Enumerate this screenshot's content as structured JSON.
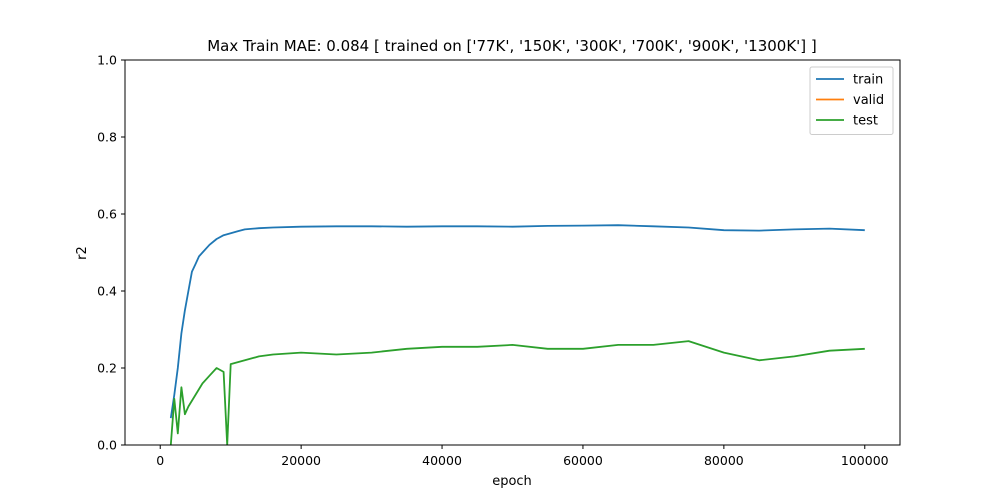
{
  "chart_data": {
    "type": "line",
    "title": "Max Train MAE: 0.084 [ trained on ['77K', '150K', '300K', '700K', '900K', '1300K'] ]",
    "xlabel": "epoch",
    "ylabel": "r2",
    "xlim": [
      -5000,
      105000
    ],
    "ylim": [
      0.0,
      1.0
    ],
    "xticks": [
      0,
      20000,
      40000,
      60000,
      80000,
      100000
    ],
    "yticks": [
      0.0,
      0.2,
      0.4,
      0.6,
      0.8,
      1.0
    ],
    "xtick_labels": [
      "0",
      "20000",
      "40000",
      "60000",
      "80000",
      "100000"
    ],
    "ytick_labels": [
      "0.0",
      "0.2",
      "0.4",
      "0.6",
      "0.8",
      "1.0"
    ],
    "legend_position": "top-right",
    "series": [
      {
        "name": "train",
        "color": "#1f77b4",
        "x": [
          1500,
          2000,
          2500,
          3000,
          3500,
          4000,
          4500,
          5000,
          5500,
          6000,
          7000,
          8000,
          9000,
          10000,
          11000,
          12000,
          14000,
          16000,
          20000,
          25000,
          30000,
          35000,
          40000,
          45000,
          50000,
          55000,
          60000,
          65000,
          70000,
          75000,
          80000,
          85000,
          90000,
          95000,
          100000
        ],
        "y": [
          0.07,
          0.13,
          0.2,
          0.29,
          0.35,
          0.4,
          0.45,
          0.47,
          0.49,
          0.5,
          0.52,
          0.535,
          0.545,
          0.55,
          0.555,
          0.56,
          0.563,
          0.565,
          0.567,
          0.568,
          0.568,
          0.567,
          0.568,
          0.568,
          0.567,
          0.569,
          0.57,
          0.571,
          0.568,
          0.565,
          0.558,
          0.557,
          0.56,
          0.562,
          0.558
        ]
      },
      {
        "name": "valid",
        "color": "#ff7f0e",
        "x": [],
        "y": []
      },
      {
        "name": "test",
        "color": "#2ca02c",
        "x": [
          1500,
          2000,
          2500,
          3000,
          3500,
          4000,
          5000,
          6000,
          7000,
          8000,
          9000,
          9500,
          10000,
          12000,
          14000,
          16000,
          20000,
          25000,
          30000,
          35000,
          40000,
          45000,
          50000,
          55000,
          60000,
          65000,
          70000,
          75000,
          80000,
          85000,
          90000,
          95000,
          100000
        ],
        "y": [
          0.0,
          0.12,
          0.03,
          0.15,
          0.08,
          0.1,
          0.13,
          0.16,
          0.18,
          0.2,
          0.19,
          0.0,
          0.21,
          0.22,
          0.23,
          0.235,
          0.24,
          0.235,
          0.24,
          0.25,
          0.255,
          0.255,
          0.26,
          0.25,
          0.25,
          0.26,
          0.26,
          0.27,
          0.24,
          0.22,
          0.23,
          0.245,
          0.25
        ]
      }
    ]
  }
}
